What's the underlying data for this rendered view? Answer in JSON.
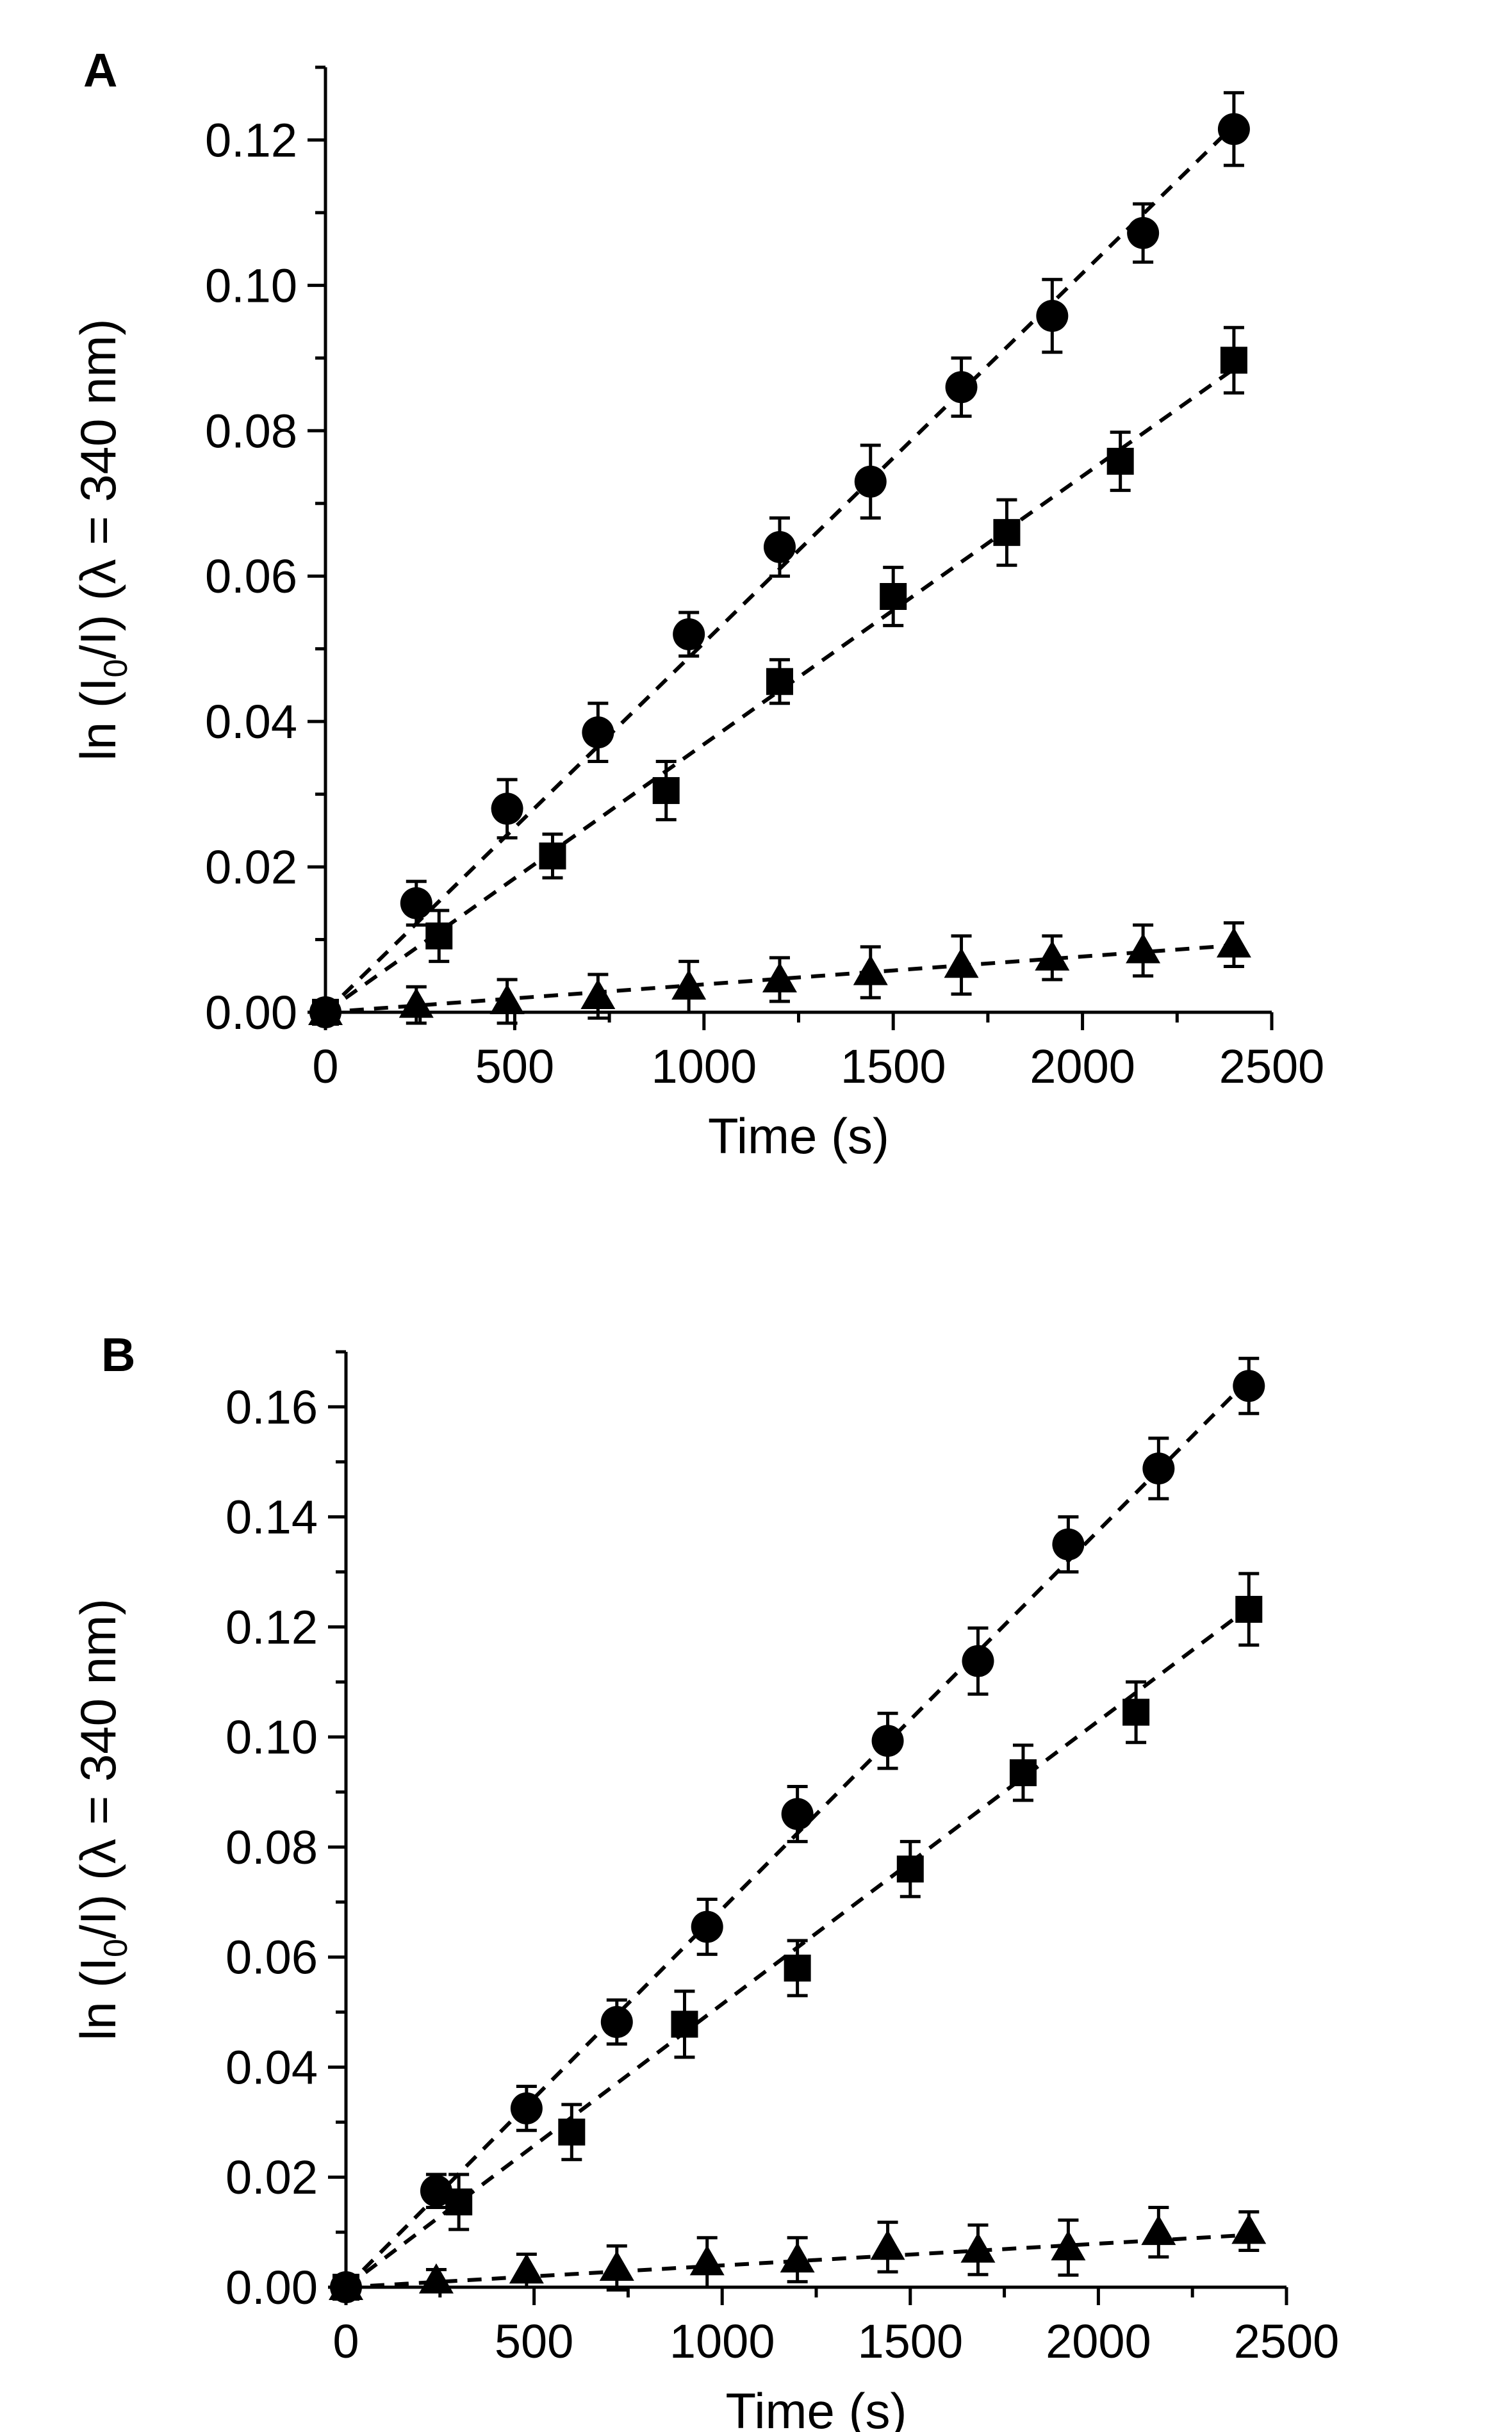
{
  "chart_data": [
    {
      "panel": "A",
      "type": "scatter",
      "title": "",
      "xlabel": "Time (s)",
      "ylabel": {
        "prefix": "ln (I",
        "sub": "0",
        "suffix": "/I) (λ = 340 nm)"
      },
      "xlim": [
        0,
        2500
      ],
      "ylim": [
        0,
        0.13
      ],
      "xticks": [
        "0",
        "500",
        "1000",
        "1500",
        "2000",
        "2500"
      ],
      "yticks": [
        "0.00",
        "0.02",
        "0.04",
        "0.06",
        "0.08",
        "0.10",
        "0.12"
      ],
      "series": [
        {
          "name": "circle",
          "marker": "circle",
          "x": [
            0,
            240,
            480,
            720,
            960,
            1200,
            1440,
            1680,
            1920,
            2160,
            2400
          ],
          "y": [
            0,
            0.015,
            0.028,
            0.0385,
            0.052,
            0.064,
            0.073,
            0.086,
            0.0958,
            0.1072,
            0.1215
          ],
          "err": [
            0,
            0.003,
            0.004,
            0.004,
            0.003,
            0.004,
            0.005,
            0.004,
            0.005,
            0.004,
            0.005
          ],
          "fit": {
            "x0": 0,
            "y0": 0,
            "x1": 2400,
            "y1": 0.122
          }
        },
        {
          "name": "square",
          "marker": "square",
          "x": [
            0,
            300,
            600,
            900,
            1200,
            1500,
            1800,
            2100,
            2400
          ],
          "y": [
            0,
            0.0105,
            0.0215,
            0.0305,
            0.0455,
            0.0572,
            0.066,
            0.0758,
            0.0897
          ],
          "err": [
            0,
            0.0035,
            0.003,
            0.004,
            0.003,
            0.004,
            0.0045,
            0.004,
            0.0045
          ],
          "fit": {
            "x0": 0,
            "y0": 0,
            "x1": 2400,
            "y1": 0.0885
          }
        },
        {
          "name": "triangle",
          "marker": "triangle",
          "x": [
            0,
            240,
            480,
            720,
            960,
            1200,
            1440,
            1680,
            1920,
            2160,
            2400
          ],
          "y": [
            0,
            0.001,
            0.0015,
            0.0022,
            0.0035,
            0.0045,
            0.0055,
            0.0065,
            0.0075,
            0.0085,
            0.0093
          ],
          "err": [
            0,
            0.0025,
            0.003,
            0.003,
            0.0035,
            0.003,
            0.0035,
            0.004,
            0.003,
            0.0035,
            0.003
          ],
          "fit": {
            "x0": 0,
            "y0": 0,
            "x1": 2400,
            "y1": 0.0092
          }
        }
      ]
    },
    {
      "panel": "B",
      "type": "scatter",
      "title": "",
      "xlabel": "Time (s)",
      "ylabel": {
        "prefix": "ln (I",
        "sub": "0",
        "suffix": "/I) (λ = 340 nm)"
      },
      "xlim": [
        0,
        2500
      ],
      "ylim": [
        0,
        0.17
      ],
      "xticks": [
        "0",
        "500",
        "1000",
        "1500",
        "2000",
        "2500"
      ],
      "yticks": [
        "0.00",
        "0.02",
        "0.04",
        "0.06",
        "0.08",
        "0.10",
        "0.12",
        "0.14",
        "0.16"
      ],
      "series": [
        {
          "name": "circle",
          "marker": "circle",
          "x": [
            0,
            240,
            480,
            720,
            960,
            1200,
            1440,
            1680,
            1920,
            2160,
            2400
          ],
          "y": [
            0,
            0.0175,
            0.0325,
            0.0482,
            0.0655,
            0.086,
            0.0993,
            0.1138,
            0.135,
            0.1488,
            0.1638
          ],
          "err": [
            0,
            0.003,
            0.004,
            0.004,
            0.005,
            0.005,
            0.005,
            0.006,
            0.005,
            0.0055,
            0.005
          ],
          "fit": {
            "x0": 0,
            "y0": 0,
            "x1": 2400,
            "y1": 0.165
          }
        },
        {
          "name": "square",
          "marker": "square",
          "x": [
            0,
            300,
            600,
            900,
            1200,
            1500,
            1800,
            2100,
            2400
          ],
          "y": [
            0,
            0.0155,
            0.0282,
            0.0478,
            0.058,
            0.076,
            0.0935,
            0.1045,
            0.1232
          ],
          "err": [
            0,
            0.005,
            0.005,
            0.006,
            0.005,
            0.005,
            0.005,
            0.0055,
            0.0065
          ],
          "fit": {
            "x0": 0,
            "y0": 0,
            "x1": 2400,
            "y1": 0.1235
          }
        },
        {
          "name": "triangle",
          "marker": "triangle",
          "x": [
            0,
            240,
            480,
            720,
            960,
            1200,
            1440,
            1680,
            1920,
            2160,
            2400
          ],
          "y": [
            0,
            0.0012,
            0.003,
            0.0035,
            0.0045,
            0.005,
            0.0073,
            0.0068,
            0.0072,
            0.01,
            0.0102
          ],
          "err": [
            0,
            0.002,
            0.003,
            0.004,
            0.0045,
            0.004,
            0.0045,
            0.0045,
            0.005,
            0.0045,
            0.0035
          ],
          "fit": {
            "x0": 0,
            "y0": 0,
            "x1": 2400,
            "y1": 0.0095
          }
        }
      ]
    }
  ]
}
